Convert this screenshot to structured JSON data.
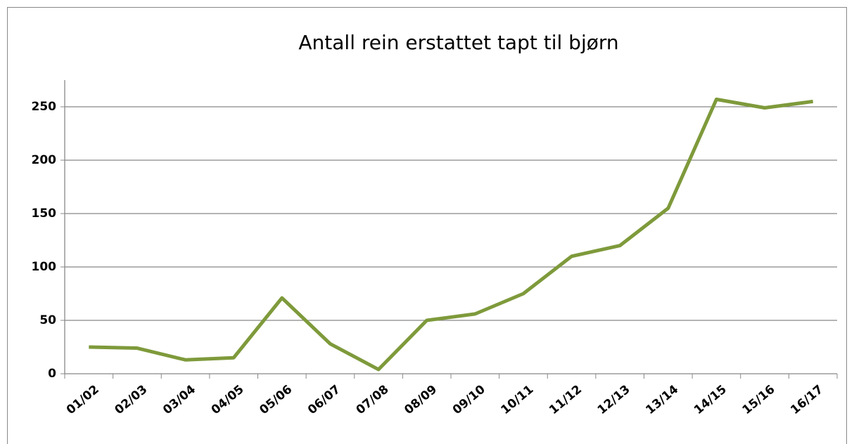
{
  "chart_data": {
    "type": "line",
    "title": "Antall rein erstattet tapt til bjørn",
    "categories": [
      "01/02",
      "02/03",
      "03/04",
      "04/05",
      "05/06",
      "06/07",
      "07/08",
      "08/09",
      "09/10",
      "10/11",
      "11/12",
      "12/13",
      "13/14",
      "14/15",
      "15/16",
      "16/17"
    ],
    "values": [
      25,
      24,
      13,
      15,
      71,
      28,
      4,
      50,
      56,
      75,
      110,
      120,
      155,
      257,
      249,
      255
    ],
    "color": "#7e9a3b",
    "ylim": [
      0,
      275
    ],
    "yticks": [
      0,
      50,
      100,
      150,
      200,
      250
    ],
    "grid": true
  }
}
